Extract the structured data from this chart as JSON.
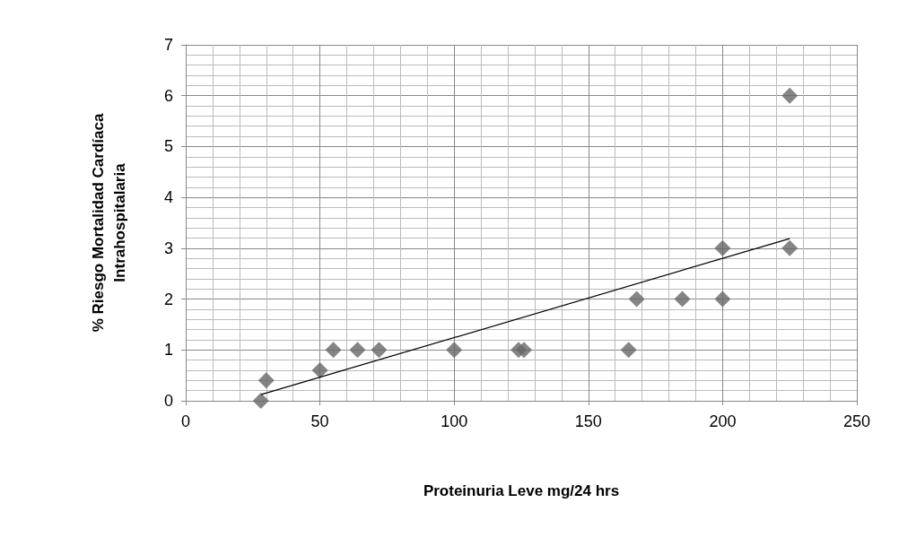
{
  "chart_data": {
    "type": "scatter",
    "xlabel": "Proteinuria Leve mg/24 hrs",
    "ylabel": "% Riesgo Mortalidad Cardíaca\nIntrahospitalaria",
    "xlim": [
      0,
      250
    ],
    "xticks": [
      0,
      50,
      100,
      150,
      200,
      250
    ],
    "ylim": [
      0,
      7
    ],
    "yticks": [
      0,
      1,
      2,
      3,
      4,
      5,
      6,
      7
    ],
    "grid": true,
    "marker": "diamond",
    "series": [
      {
        "type": "scatter",
        "color": "#666666",
        "x": [
          28,
          30,
          50,
          55,
          64,
          72,
          100,
          124,
          126,
          165,
          168,
          185,
          200,
          200,
          225,
          225
        ],
        "values": [
          0,
          0.4,
          0.6,
          1,
          1,
          1,
          1,
          1,
          1,
          1,
          2,
          2,
          2,
          3,
          3,
          6
        ]
      },
      {
        "type": "line",
        "color": "#000000",
        "marker": "none",
        "x": [
          28,
          225
        ],
        "values": [
          0.12,
          3.19
        ]
      }
    ]
  }
}
